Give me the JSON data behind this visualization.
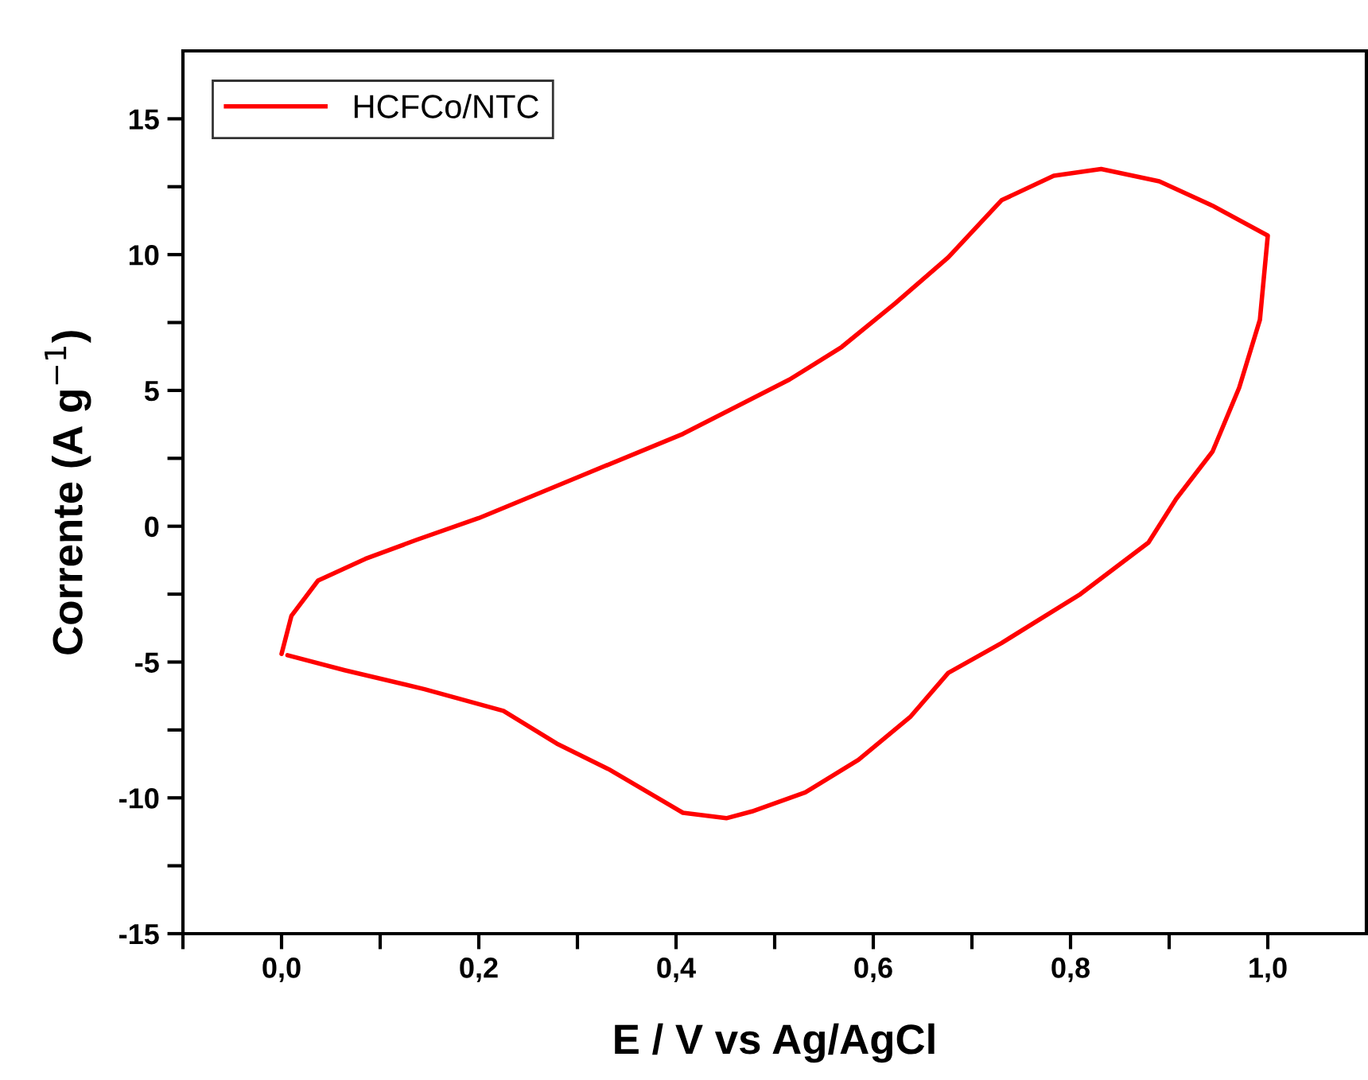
{
  "chart_data": {
    "type": "line",
    "xlabel": "E / V vs Ag/AgCl",
    "ylabel": "Corrente (A g$^{−1}$)",
    "xlim": [
      -0.1,
      1.1
    ],
    "xticks": [
      {
        "value": -0.1,
        "label": null
      },
      {
        "value": 0,
        "label": "0,0"
      },
      {
        "value": 0.1,
        "label": null
      },
      {
        "value": 0.2,
        "label": "0,2"
      },
      {
        "value": 0.3,
        "label": null
      },
      {
        "value": 0.4,
        "label": "0,4"
      },
      {
        "value": 0.5,
        "label": null
      },
      {
        "value": 0.6,
        "label": "0,6"
      },
      {
        "value": 0.7,
        "label": null
      },
      {
        "value": 0.8,
        "label": "0,8"
      },
      {
        "value": 0.9,
        "label": null
      },
      {
        "value": 1.0,
        "label": "1,0"
      }
    ],
    "ylim": [
      -15,
      17.5
    ],
    "yticks": [
      -15,
      {
        "value": -12.5,
        "label": null
      },
      -10,
      {
        "value": -7.5,
        "label": null
      },
      -5,
      {
        "value": -2.5,
        "label": null
      },
      0,
      {
        "value": 2.5,
        "label": null
      },
      5,
      {
        "value": 7.5,
        "label": null
      },
      10,
      {
        "value": 12.5,
        "label": null
      },
      15
    ],
    "grid": false,
    "legend": "top left",
    "line_style": "solid",
    "marker": "none",
    "series": [
      {
        "name": "HCFCo/NTC",
        "color": "#ff0000",
        "x": [
          0.0,
          0.01,
          0.037,
          0.085,
          0.137,
          0.2,
          0.3,
          0.407,
          0.515,
          0.568,
          0.622,
          0.676,
          0.73,
          0.783,
          0.831,
          0.89,
          0.944,
          1.0,
          0.992,
          0.971,
          0.944,
          0.907,
          0.879,
          0.81,
          0.73,
          0.676,
          0.638,
          0.585,
          0.531,
          0.477,
          0.451,
          0.407,
          0.332,
          0.279,
          0.225,
          0.145,
          0.064,
          0.006
        ],
        "values": [
          -4.7,
          -3.3,
          -2.0,
          -1.2,
          -0.5,
          0.3,
          1.8,
          3.4,
          5.4,
          6.6,
          8.2,
          9.9,
          12.0,
          12.9,
          13.15,
          12.7,
          11.8,
          10.7,
          7.6,
          5.1,
          2.75,
          1.0,
          -0.6,
          -2.5,
          -4.3,
          -5.4,
          -7.0,
          -8.6,
          -9.8,
          -10.5,
          -10.75,
          -10.55,
          -8.95,
          -8.0,
          -6.8,
          -6.0,
          -5.3,
          -4.75
        ]
      }
    ]
  }
}
